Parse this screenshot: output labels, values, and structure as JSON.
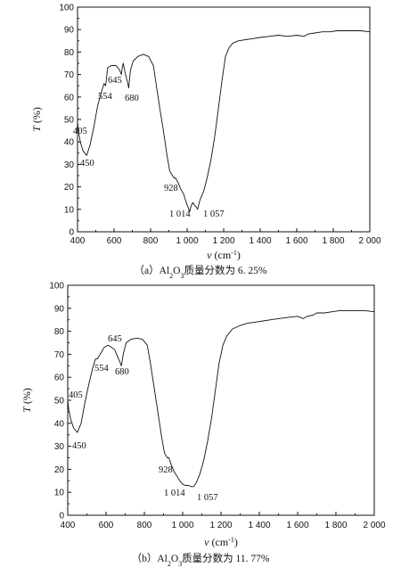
{
  "chart_data": [
    {
      "type": "line",
      "caption": {
        "prefix": "（a）Al",
        "sub1": "2",
        "mid": "O",
        "sub2": "3",
        "suffix": "质量分数为 6. 25%"
      },
      "xlabel": {
        "main": "v",
        "unit": " (cm",
        "sup": "-1",
        "close": ")"
      },
      "ylabel": {
        "main": "T",
        "unit": " (%)"
      },
      "xlim": [
        400,
        2000
      ],
      "ylim": [
        0,
        100
      ],
      "xticks": [
        400,
        600,
        800,
        1000,
        1200,
        1400,
        1600,
        1800,
        2000
      ],
      "xtick_labels": [
        "400",
        "600",
        "800",
        "1 000",
        "1 200",
        "1 400",
        "1 600",
        "1 800",
        "2 000"
      ],
      "yticks": [
        0,
        10,
        20,
        30,
        40,
        50,
        60,
        70,
        80,
        90,
        100
      ],
      "ytick_labels": [
        "0",
        "10",
        "20",
        "30",
        "40",
        "50",
        "60",
        "70",
        "80",
        "90",
        "100"
      ],
      "annotations": [
        "405",
        "450",
        "554",
        "645",
        "680",
        "928",
        "1 014",
        "1 057"
      ],
      "series": [
        {
          "x": [
            400,
            405,
            415,
            430,
            450,
            470,
            490,
            510,
            530,
            545,
            554,
            565,
            585,
            610,
            630,
            640,
            645,
            650,
            660,
            675,
            680,
            690,
            705,
            730,
            760,
            790,
            815,
            830,
            850,
            870,
            890,
            905,
            920,
            928,
            935,
            950,
            965,
            980,
            995,
            1005,
            1014,
            1020,
            1030,
            1040,
            1050,
            1057,
            1070,
            1090,
            1110,
            1130,
            1150,
            1170,
            1190,
            1210,
            1230,
            1250,
            1280,
            1320,
            1360,
            1400,
            1450,
            1500,
            1550,
            1600,
            1640,
            1660,
            1700,
            1740,
            1780,
            1820,
            1860,
            1900,
            1950,
            2000
          ],
          "y": [
            49,
            45,
            40,
            36,
            34,
            39,
            47,
            56,
            62,
            66,
            65,
            73,
            74,
            74,
            72,
            70,
            73,
            75,
            71,
            66,
            64,
            72,
            76,
            78,
            79,
            78,
            74,
            66,
            55,
            45,
            34,
            27,
            25,
            24,
            24,
            22,
            19,
            17,
            13,
            11,
            9,
            11,
            13,
            12,
            11,
            10,
            14,
            18,
            24,
            32,
            42,
            54,
            67,
            78,
            82,
            84,
            85,
            85.5,
            86,
            86.5,
            87,
            87.5,
            87,
            87.5,
            87,
            88,
            88.5,
            89,
            89,
            89.5,
            89.5,
            89.5,
            89.5,
            89
          ]
        }
      ]
    },
    {
      "type": "line",
      "caption": {
        "prefix": "（b）Al",
        "sub1": "2",
        "mid": "O",
        "sub2": "3",
        "suffix": "质量分数为 11. 77%"
      },
      "xlabel": {
        "main": "v",
        "unit": " (cm",
        "sup": "-1",
        "close": ")"
      },
      "ylabel": {
        "main": "T",
        "unit": " (%)"
      },
      "xlim": [
        400,
        2000
      ],
      "ylim": [
        0,
        100
      ],
      "xticks": [
        400,
        600,
        800,
        1000,
        1200,
        1400,
        1600,
        1800,
        2000
      ],
      "xtick_labels": [
        "400",
        "600",
        "800",
        "1 000",
        "1 200",
        "1 400",
        "1 600",
        "1 800",
        "2 000"
      ],
      "yticks": [
        0,
        10,
        20,
        30,
        40,
        50,
        60,
        70,
        80,
        90,
        100
      ],
      "ytick_labels": [
        "0",
        "10",
        "20",
        "30",
        "40",
        "50",
        "60",
        "70",
        "80",
        "90",
        "100"
      ],
      "annotations": [
        "405",
        "450",
        "554",
        "645",
        "680",
        "928",
        "1 014",
        "1 057"
      ],
      "series": [
        {
          "x": [
            400,
            405,
            415,
            430,
            450,
            470,
            490,
            510,
            530,
            545,
            554,
            570,
            590,
            610,
            630,
            645,
            655,
            670,
            680,
            690,
            705,
            730,
            760,
            790,
            815,
            830,
            850,
            870,
            890,
            905,
            920,
            928,
            940,
            955,
            970,
            985,
            1000,
            1014,
            1030,
            1045,
            1057,
            1070,
            1090,
            1110,
            1130,
            1150,
            1170,
            1190,
            1210,
            1230,
            1260,
            1300,
            1340,
            1380,
            1420,
            1460,
            1500,
            1550,
            1600,
            1630,
            1650,
            1680,
            1700,
            1740,
            1780,
            1820,
            1860,
            1900,
            1950,
            2000
          ],
          "y": [
            50,
            46,
            42,
            38,
            36,
            40,
            49,
            57,
            64,
            68,
            68,
            70,
            73,
            74,
            73,
            72,
            70,
            67,
            65,
            70,
            75,
            76.5,
            77,
            76.5,
            74,
            67,
            56,
            45,
            34,
            27,
            25,
            25,
            22,
            19,
            17,
            15,
            13.5,
            13,
            13,
            12.5,
            12.5,
            14,
            18,
            24,
            32,
            42,
            54,
            66,
            74,
            78,
            81,
            82.5,
            83.5,
            84,
            84.5,
            85,
            85.5,
            86,
            86.5,
            85.5,
            86.5,
            87,
            88,
            88,
            88.5,
            89,
            89,
            89,
            89,
            88.5
          ]
        }
      ]
    }
  ]
}
